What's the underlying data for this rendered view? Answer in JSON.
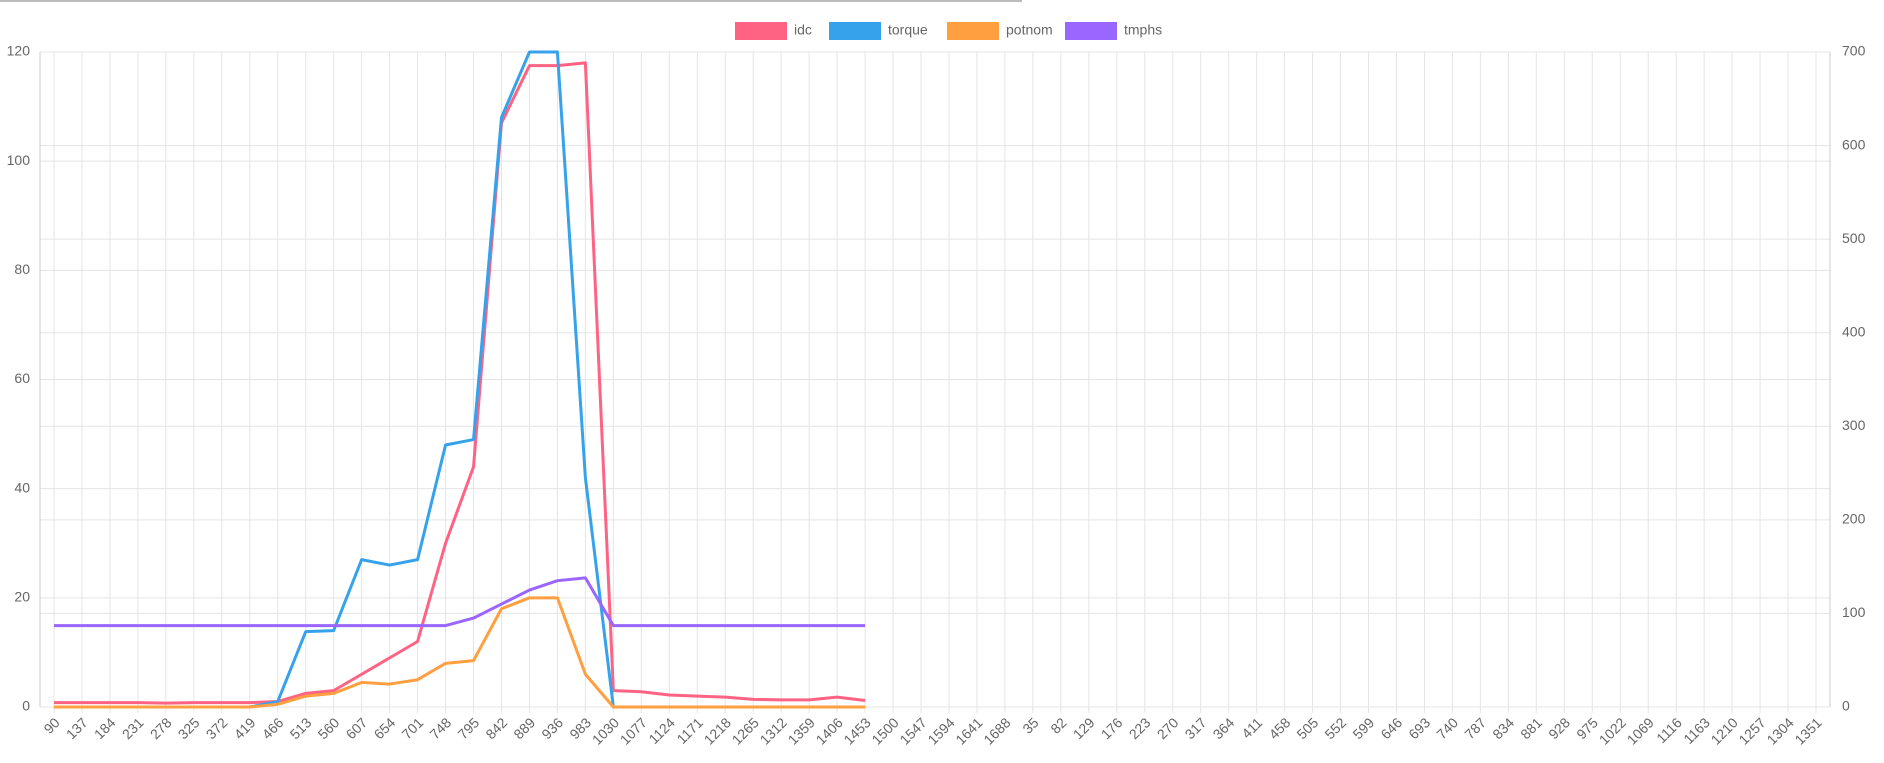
{
  "chart_data": {
    "type": "line",
    "categories": [
      "90",
      "137",
      "184",
      "231",
      "278",
      "325",
      "372",
      "419",
      "466",
      "513",
      "560",
      "607",
      "654",
      "701",
      "748",
      "795",
      "842",
      "889",
      "936",
      "983",
      "1030",
      "1077",
      "1124",
      "1171",
      "1218",
      "1265",
      "1312",
      "1359",
      "1406",
      "1453",
      "1500",
      "1547",
      "1594",
      "1641",
      "1688",
      "35",
      "82",
      "129",
      "176",
      "223",
      "270",
      "317",
      "364",
      "411",
      "458",
      "505",
      "552",
      "599",
      "646",
      "693",
      "740",
      "787",
      "834",
      "881",
      "928",
      "975",
      "1022",
      "1069",
      "1116",
      "1163",
      "1210",
      "1257",
      "1304",
      "1351"
    ],
    "series": [
      {
        "name": "idc",
        "color": "#ff6384",
        "values": [
          0.8,
          0.8,
          0.8,
          0.8,
          0.7,
          0.8,
          0.8,
          0.8,
          1,
          2.5,
          3,
          6,
          9,
          12,
          30,
          44,
          107,
          117.5,
          117.5,
          118,
          3,
          2.8,
          2.2,
          2,
          1.8,
          1.4,
          1.3,
          1.3,
          1.8,
          1.2,
          null,
          null,
          null,
          null,
          null,
          null,
          null,
          null,
          null,
          null,
          null,
          null,
          null,
          null,
          null,
          null,
          null,
          null,
          null,
          null,
          null,
          null,
          null,
          null,
          null,
          null,
          null,
          null,
          null,
          null,
          null,
          null,
          null,
          null
        ]
      },
      {
        "name": "torque",
        "color": "#36a2eb",
        "values": [
          0,
          0,
          0,
          0,
          0,
          0,
          0,
          0,
          1,
          13.8,
          14,
          27,
          26,
          27,
          48,
          49,
          108,
          120,
          120,
          42,
          0,
          0,
          0,
          0,
          0,
          0,
          0,
          0,
          0,
          0,
          null,
          null,
          null,
          null,
          null,
          null,
          null,
          null,
          null,
          null,
          null,
          null,
          null,
          null,
          null,
          null,
          null,
          null,
          null,
          null,
          null,
          null,
          null,
          null,
          null,
          null,
          null,
          null,
          null,
          null,
          null,
          null,
          null,
          null
        ]
      },
      {
        "name": "potnom",
        "color": "#ff9f40",
        "values": [
          0,
          0,
          0,
          0,
          0,
          0,
          0,
          0,
          0.5,
          2,
          2.5,
          4.5,
          4.2,
          5,
          8,
          8.5,
          18,
          20,
          20,
          6,
          0,
          0,
          0,
          0,
          0,
          0,
          0,
          0,
          0,
          0,
          null,
          null,
          null,
          null,
          null,
          null,
          null,
          null,
          null,
          null,
          null,
          null,
          null,
          null,
          null,
          null,
          null,
          null,
          null,
          null,
          null,
          null,
          null,
          null,
          null,
          null,
          null,
          null,
          null,
          null,
          null,
          null,
          null,
          null
        ]
      },
      {
        "name": "tmphs",
        "color": "#9966ff",
        "axis": "y2",
        "values": [
          87,
          87,
          87,
          87,
          87,
          87,
          87,
          87,
          87,
          87,
          87,
          87,
          87,
          87,
          87,
          95,
          110,
          125,
          135,
          138,
          87,
          87,
          87,
          87,
          87,
          87,
          87,
          87,
          87,
          87,
          null,
          null,
          null,
          null,
          null,
          null,
          null,
          null,
          null,
          null,
          null,
          null,
          null,
          null,
          null,
          null,
          null,
          null,
          null,
          null,
          null,
          null,
          null,
          null,
          null,
          null,
          null,
          null,
          null,
          null,
          null,
          null,
          null,
          null
        ]
      }
    ],
    "ylim": [
      0,
      120
    ],
    "yticks": [
      0,
      20,
      40,
      60,
      80,
      100,
      120
    ],
    "y2lim": [
      0,
      700
    ],
    "y2ticks": [
      0,
      100,
      200,
      300,
      400,
      500,
      600,
      700
    ],
    "grid": true,
    "legend": "top"
  }
}
